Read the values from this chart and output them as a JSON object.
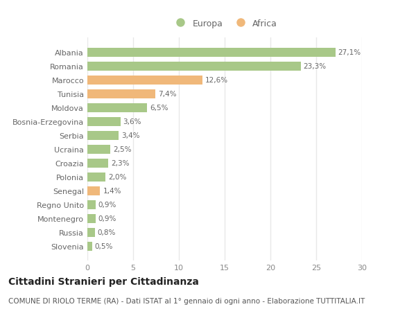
{
  "categories": [
    "Albania",
    "Romania",
    "Marocco",
    "Tunisia",
    "Moldova",
    "Bosnia-Erzegovina",
    "Serbia",
    "Ucraina",
    "Croazia",
    "Polonia",
    "Senegal",
    "Regno Unito",
    "Montenegro",
    "Russia",
    "Slovenia"
  ],
  "values": [
    27.1,
    23.3,
    12.6,
    7.4,
    6.5,
    3.6,
    3.4,
    2.5,
    2.3,
    2.0,
    1.4,
    0.9,
    0.9,
    0.8,
    0.5
  ],
  "labels": [
    "27,1%",
    "23,3%",
    "12,6%",
    "7,4%",
    "6,5%",
    "3,6%",
    "3,4%",
    "2,5%",
    "2,3%",
    "2,0%",
    "1,4%",
    "0,9%",
    "0,9%",
    "0,8%",
    "0,5%"
  ],
  "continent": [
    "Europa",
    "Europa",
    "Africa",
    "Africa",
    "Europa",
    "Europa",
    "Europa",
    "Europa",
    "Europa",
    "Europa",
    "Africa",
    "Europa",
    "Europa",
    "Europa",
    "Europa"
  ],
  "color_europa": "#a8c888",
  "color_africa": "#f0b87a",
  "legend_europa": "Europa",
  "legend_africa": "Africa",
  "xlim": [
    0,
    30
  ],
  "xticks": [
    0,
    5,
    10,
    15,
    20,
    25,
    30
  ],
  "title": "Cittadini Stranieri per Cittadinanza",
  "subtitle": "COMUNE DI RIOLO TERME (RA) - Dati ISTAT al 1° gennaio di ogni anno - Elaborazione TUTTITALIA.IT",
  "background_color": "#ffffff",
  "grid_color": "#e8e8e8",
  "bar_height": 0.65,
  "title_fontsize": 10,
  "subtitle_fontsize": 7.5,
  "label_fontsize": 7.5,
  "tick_fontsize": 8,
  "legend_fontsize": 9
}
